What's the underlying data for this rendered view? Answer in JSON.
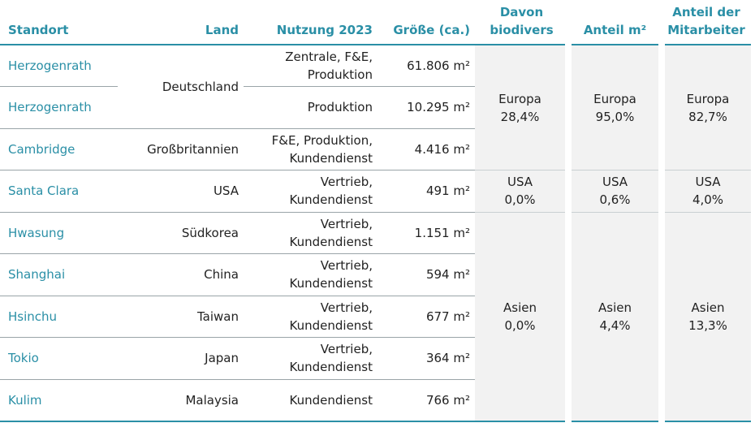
{
  "headers": {
    "standort": "Standort",
    "land": "Land",
    "nutzung": "Nutzung 2023",
    "groesse": "Größe (ca.)",
    "biodivers_1": "Davon",
    "biodivers_2": "biodivers",
    "anteil_m2": "Anteil m²",
    "anteil_ma_1": "Anteil der",
    "anteil_ma_2": "Mitarbeiter"
  },
  "rows": [
    {
      "standort": "Herzogenrath",
      "nutzung_1": "Zentrale, F&E,",
      "nutzung_2": "Produktion",
      "groesse": "61.806 m²"
    },
    {
      "standort": "Herzogenrath",
      "nutzung_1": "Produktion",
      "nutzung_2": "",
      "groesse": "10.295 m²"
    },
    {
      "standort": "Cambridge",
      "land": "Großbritannien",
      "nutzung_1": "F&E, Produktion,",
      "nutzung_2": "Kundendienst",
      "groesse": "4.416 m²"
    },
    {
      "standort": "Santa Clara",
      "land": "USA",
      "nutzung_1": "Vertrieb,",
      "nutzung_2": "Kundendienst",
      "groesse": "491 m²"
    },
    {
      "standort": "Hwasung",
      "land": "Südkorea",
      "nutzung_1": "Vertrieb,",
      "nutzung_2": "Kundendienst",
      "groesse": "1.151 m²"
    },
    {
      "standort": "Shanghai",
      "land": "China",
      "nutzung_1": "Vertrieb,",
      "nutzung_2": "Kundendienst",
      "groesse": "594 m²"
    },
    {
      "standort": "Hsinchu",
      "land": "Taiwan",
      "nutzung_1": "Vertrieb,",
      "nutzung_2": "Kundendienst",
      "groesse": "677 m²"
    },
    {
      "standort": "Tokio",
      "land": "Japan",
      "nutzung_1": "Vertrieb,",
      "nutzung_2": "Kundendienst",
      "groesse": "364 m²"
    },
    {
      "standort": "Kulim",
      "land": "Malaysia",
      "nutzung_1": "Kundendienst",
      "nutzung_2": "",
      "groesse": "766 m²"
    }
  ],
  "land_merged": "Deutschland",
  "regions": {
    "europa": {
      "name": "Europa",
      "biodivers": "28,4%",
      "anteil_m2": "95,0%",
      "anteil_ma": "82,7%"
    },
    "usa": {
      "name": "USA",
      "biodivers": "0,0%",
      "anteil_m2": "0,6%",
      "anteil_ma": "4,0%"
    },
    "asien": {
      "name": "Asien",
      "biodivers": "0,0%",
      "anteil_m2": "4,4%",
      "anteil_ma": "13,3%"
    }
  },
  "colors": {
    "accent": "#2a8fa6",
    "shade": "#f2f2f2"
  }
}
